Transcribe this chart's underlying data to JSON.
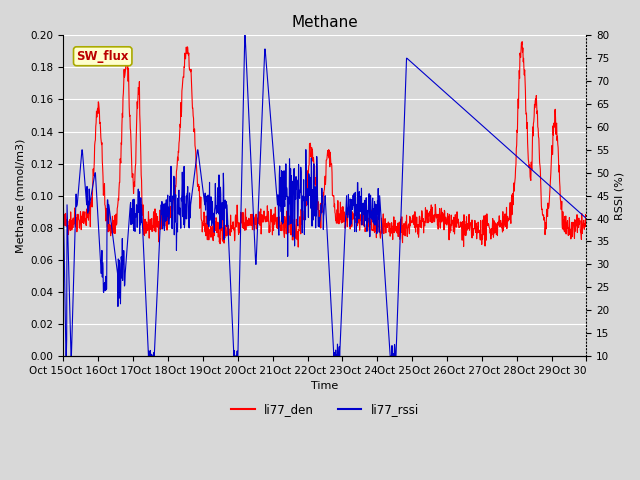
{
  "title": "Methane",
  "xlabel": "Time",
  "ylabel_left": "Methane (mmol/m3)",
  "ylabel_right": "RSSI (%)",
  "ylim_left": [
    0.0,
    0.2
  ],
  "ylim_right": [
    10,
    80
  ],
  "yticks_left": [
    0.0,
    0.02,
    0.04,
    0.06,
    0.08,
    0.1,
    0.12,
    0.14,
    0.16,
    0.18,
    0.2
  ],
  "yticks_right": [
    10,
    15,
    20,
    25,
    30,
    35,
    40,
    45,
    50,
    55,
    60,
    65,
    70,
    75,
    80
  ],
  "xtick_labels": [
    "Oct 15",
    "Oct 16",
    "Oct 17",
    "Oct 18",
    "Oct 19",
    "Oct 20",
    "Oct 21",
    "Oct 22",
    "Oct 23",
    "Oct 24",
    "Oct 25",
    "Oct 26",
    "Oct 27",
    "Oct 28",
    "Oct 29",
    "Oct 30"
  ],
  "color_den": "#ff0000",
  "color_rssi": "#0000cc",
  "legend_label_den": "li77_den",
  "legend_label_rssi": "li77_rssi",
  "sw_flux_text": "SW_flux",
  "sw_flux_bg": "#ffffcc",
  "sw_flux_border": "#aaaa00",
  "bg_color": "#d8d8d8",
  "plot_bg": "#d8d8d8",
  "grid_color": "#ffffff",
  "line_width": 0.8,
  "title_fontsize": 11,
  "axis_fontsize": 8,
  "tick_fontsize": 7.5
}
